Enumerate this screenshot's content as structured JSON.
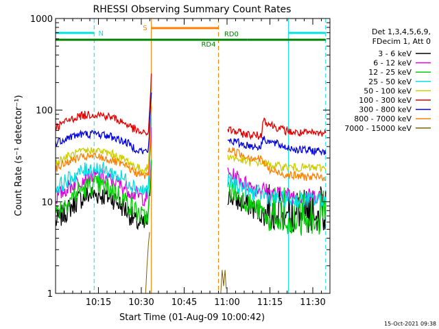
{
  "chart_data": {
    "type": "line",
    "title": "RHESSI Observing Summary Count Rates",
    "xlabel": "Start Time (01-Aug-09 10:00:42)",
    "ylabel": "Count Rate (s⁻¹ detector⁻¹)",
    "yscale": "log",
    "ylim": [
      1,
      1000
    ],
    "xlim_minutes": [
      0,
      96
    ],
    "x_ticks": [
      {
        "min": 15,
        "label": "10:15"
      },
      {
        "min": 30,
        "label": "10:30"
      },
      {
        "min": 45,
        "label": "10:45"
      },
      {
        "min": 60,
        "label": "11:00"
      },
      {
        "min": 75,
        "label": "11:15"
      },
      {
        "min": 90,
        "label": "11:30"
      }
    ],
    "y_ticks": [
      {
        "v": 1,
        "label": "1"
      },
      {
        "v": 10,
        "label": "10"
      },
      {
        "v": 100,
        "label": "100"
      },
      {
        "v": 1000,
        "label": "1000"
      }
    ],
    "legend_title": [
      "Det 1,3,4,5,6,9,",
      "FDecim 1, Att 0"
    ],
    "footer": "15-Oct-2021 09:38",
    "series": [
      {
        "name": "3 - 6 keV",
        "color": "#000000",
        "x": [
          0,
          4,
          8,
          12,
          15,
          20,
          25,
          28,
          31,
          32.5,
          33.5,
          56,
          57,
          60,
          64,
          66,
          68,
          70,
          72,
          75,
          80,
          85,
          90,
          94.5
        ],
        "values": [
          6,
          8,
          10.5,
          12,
          12,
          11,
          8,
          6,
          5.5,
          6.5,
          30,
          null,
          null,
          12,
          10,
          9.5,
          9,
          8,
          7.5,
          6.5,
          6.2,
          6,
          6,
          6
        ]
      },
      {
        "name": "6 - 12 keV",
        "color": "#e000e0",
        "x": [
          0,
          4,
          8,
          12,
          15,
          20,
          25,
          28,
          31,
          32.5,
          33.5,
          56,
          57,
          60,
          64,
          66,
          68,
          70,
          72,
          75,
          80,
          85,
          90,
          94.5
        ],
        "values": [
          11,
          14,
          17,
          19,
          19,
          17,
          14,
          12,
          11,
          12,
          70,
          null,
          null,
          20,
          18,
          16,
          15,
          14,
          14,
          12.5,
          12,
          11.5,
          11.5,
          11.5
        ]
      },
      {
        "name": "12 - 25 keV",
        "color": "#00d000",
        "x": [
          0,
          4,
          8,
          12,
          15,
          20,
          25,
          28,
          31,
          32.5,
          33.5,
          56,
          57,
          60,
          64,
          66,
          68,
          70,
          72,
          75,
          80,
          85,
          90,
          94.5
        ],
        "values": [
          7.5,
          10,
          13,
          15,
          15,
          13.5,
          10,
          8,
          6.5,
          7.5,
          25,
          null,
          null,
          14,
          12,
          10.5,
          9.5,
          8.5,
          8,
          6,
          5.8,
          5.6,
          5.6,
          5.6
        ]
      },
      {
        "name": "25 - 50 keV",
        "color": "#00e0e0",
        "x": [
          0,
          4,
          8,
          12,
          15,
          20,
          25,
          28,
          31,
          32.5,
          33.5,
          56,
          57,
          60,
          64,
          66,
          68,
          70,
          72,
          75,
          80,
          85,
          90,
          94.5
        ],
        "values": [
          14,
          17,
          20.5,
          23,
          23,
          20.5,
          17,
          14.5,
          13,
          14,
          90,
          null,
          null,
          17,
          15,
          14,
          13,
          12.5,
          12.2,
          11,
          10.5,
          10.5,
          10.5,
          10.5
        ]
      },
      {
        "name": "50 - 100 keV",
        "color": "#cccc00",
        "x": [
          0,
          4,
          8,
          12,
          15,
          20,
          25,
          28,
          31,
          32.5,
          33.5,
          56,
          57,
          60,
          64,
          66,
          68,
          70,
          72,
          75,
          80,
          85,
          90,
          94.5
        ],
        "values": [
          27,
          31,
          34.5,
          36,
          36,
          33,
          28,
          24,
          22,
          24,
          130,
          null,
          null,
          32,
          29,
          28,
          27,
          27,
          27,
          25,
          24,
          23.5,
          23.5,
          23.5
        ]
      },
      {
        "name": "100 - 300 keV",
        "color": "#e00000",
        "x": [
          0,
          4,
          8,
          12,
          15,
          20,
          25,
          28,
          31,
          32.5,
          33.5,
          56,
          57,
          60,
          64,
          66,
          68,
          70,
          72,
          72.5,
          75,
          80,
          85,
          90,
          94.5
        ],
        "values": [
          65,
          76,
          86,
          90,
          90,
          83,
          70,
          60,
          55,
          58,
          230,
          null,
          null,
          62,
          57,
          55,
          54,
          53,
          52,
          80,
          70,
          60,
          56,
          56,
          56
        ]
      },
      {
        "name": "300 - 800 keV",
        "color": "#0000e0",
        "x": [
          0,
          4,
          8,
          12,
          15,
          20,
          25,
          28,
          31,
          32.5,
          33.5,
          56,
          57,
          60,
          64,
          66,
          68,
          70,
          72,
          72.5,
          75,
          80,
          85,
          90,
          94.5
        ],
        "values": [
          44,
          50,
          54,
          55,
          55,
          51,
          44,
          38,
          35,
          37,
          150,
          null,
          null,
          48,
          44,
          42,
          41,
          40,
          40,
          50,
          45,
          40,
          37,
          36,
          36
        ]
      },
      {
        "name": "800 - 7000 keV",
        "color": "#ff8000",
        "x": [
          0,
          4,
          8,
          12,
          15,
          20,
          25,
          28,
          31,
          32.5,
          33.5,
          56,
          57,
          60,
          64,
          66,
          68,
          70,
          72,
          75,
          80,
          85,
          90,
          94.5
        ],
        "values": [
          23,
          27,
          30,
          31,
          31,
          28,
          24,
          21,
          19,
          20,
          110,
          null,
          null,
          38,
          34,
          32,
          31,
          30,
          29,
          22,
          20,
          19,
          18.5,
          18.5
        ]
      },
      {
        "name": "7000 - 15000 keV",
        "color": "#806000",
        "x": [
          31.5,
          32,
          32.5,
          33,
          33.3,
          57.8,
          58.3,
          58.8,
          59.3,
          59.8
        ],
        "values": [
          1,
          2,
          3.5,
          5,
          null,
          1,
          1.8,
          1.2,
          1.8,
          1
        ]
      }
    ],
    "overlays": [
      {
        "name": "N",
        "kind": "night",
        "color": "#00e0e0",
        "label_x": 15,
        "intervals": [
          [
            0,
            13.5
          ],
          [
            81.5,
            94.5
          ]
        ],
        "boundaries": [
          {
            "t": 0,
            "style": "solid"
          },
          {
            "t": 13.5,
            "style": "dashed"
          },
          {
            "t": 81.5,
            "style": "solid"
          },
          {
            "t": 94.5,
            "style": "dashed"
          }
        ]
      },
      {
        "name": "S",
        "kind": "saa",
        "color": "#ff8000",
        "label_x": 30,
        "intervals": [
          [
            33.5,
            57
          ]
        ],
        "boundaries": [
          {
            "t": 33.5,
            "style": "solid"
          },
          {
            "t": 57,
            "style": "dashed"
          }
        ]
      },
      {
        "name": "RD0",
        "kind": "decimation",
        "color": "#008000",
        "label_x": 59,
        "intervals": [
          [
            0,
            57
          ],
          [
            67,
            94.5
          ]
        ]
      },
      {
        "name": "RD4",
        "kind": "decimation",
        "color": "#008000",
        "label_x": 50,
        "intervals": [
          [
            57,
            67
          ]
        ]
      }
    ]
  }
}
